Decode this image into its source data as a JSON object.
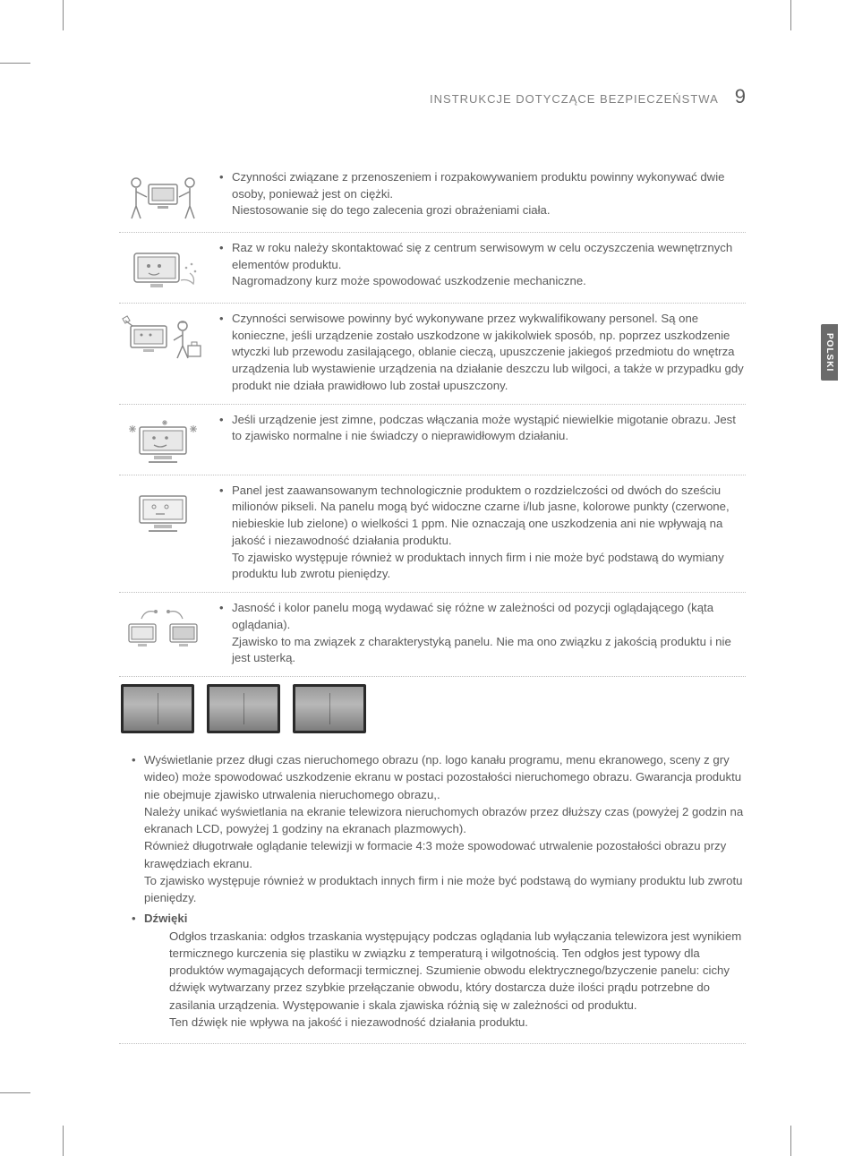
{
  "header": {
    "section_title": "INSTRUKCJE DOTYCZĄCE BEZPIECZEŃSTWA",
    "page_number": "9"
  },
  "lang_tab": "POLSKI",
  "rows": [
    {
      "icon": "two-people-carry",
      "text": "Czynności związane z przenoszeniem i rozpakowywaniem produktu powinny wykonywać dwie osoby, ponieważ jest on ciężki.\nNiestosowanie się do tego zalecenia grozi obrażeniami ciała."
    },
    {
      "icon": "monitor-dust",
      "text": "Raz w roku należy skontaktować się z centrum serwisowym w celu oczyszczenia wewnętrznych elementów produktu.\nNagromadzony kurz może spowodować uszkodzenie mechaniczne."
    },
    {
      "icon": "service-person",
      "text": "Czynności serwisowe powinny być wykonywane przez wykwalifikowany personel. Są one konieczne, jeśli urządzenie zostało uszkodzone w jakikolwiek sposób, np. poprzez uszkodzenie wtyczki lub przewodu zasilającego, oblanie cieczą, upuszczenie jakiegoś przedmiotu do wnętrza urządzenia lub wystawienie urządzenia na działanie deszczu lub wilgoci, a także w przypadku gdy produkt nie działa prawidłowo lub został upuszczony."
    },
    {
      "icon": "cold-monitor",
      "text": "Jeśli urządzenie jest zimne, podczas włączania może wystąpić niewielkie migotanie obrazu. Jest to zjawisko normalne i nie świadczy o nieprawidłowym działaniu."
    },
    {
      "icon": "panel-dots",
      "text": "Panel jest zaawansowanym technologicznie produktem o rozdzielczości od dwóch do sześciu milionów pikseli. Na panelu mogą być widoczne czarne i/lub jasne, kolorowe punkty (czerwone, niebieskie lub zielone) o wielkości 1 ppm. Nie oznaczają one uszkodzenia ani nie wpływają na jakość i niezawodność działania produktu.\nTo zjawisko występuje również w produktach innych firm i nie może być podstawą do wymiany produktu lub zwrotu pieniędzy."
    },
    {
      "icon": "viewing-angle",
      "text": "Jasność i kolor panelu mogą wydawać się różne w zależności od pozycji oglądającego (kąta oglądania).\nZjawisko to ma związek z charakterystyką panelu. Nie ma ono związku z jakością produktu i nie jest usterką."
    }
  ],
  "body_items": [
    {
      "title": "",
      "text": "Wyświetlanie przez długi czas nieruchomego obrazu (np. logo kanału programu, menu ekranowego, sceny z gry wideo) może spowodować uszkodzenie ekranu w postaci pozostałości nieruchomego obrazu. Gwarancja produktu nie obejmuje zjawisko utrwalenia nieruchomego obrazu,.\nNależy unikać wyświetlania na ekranie telewizora nieruchomych obrazów przez dłuższy czas (powyżej 2 godzin na ekranach LCD, powyżej 1 godziny na ekranach plazmowych).\nRównież długotrwałe oglądanie telewizji w formacie 4:3 może spowodować utrwalenie pozostałości obrazu przy krawędziach ekranu.\nTo zjawisko występuje również w produktach innych firm i nie może być podstawą do wymiany produktu lub zwrotu pieniędzy."
    },
    {
      "title": "Dźwięki",
      "text": "Odgłos trzaskania: odgłos trzaskania występujący podczas oglądania lub wyłączania telewizora jest wynikiem termicznego kurczenia się plastiku w związku z temperaturą i wilgotnością. Ten odgłos jest typowy dla produktów wymagających deformacji termicznej. Szumienie obwodu elektrycznego/bzyczenie panelu: cichy dźwięk wytwarzany przez szybkie przełączanie obwodu, który dostarcza duże ilości prądu potrzebne do zasilania urządzenia. Występowanie i skala zjawiska różnią się w zależności od produktu.\nTen dźwięk nie wpływa na jakość i niezawodność działania produktu."
    }
  ]
}
